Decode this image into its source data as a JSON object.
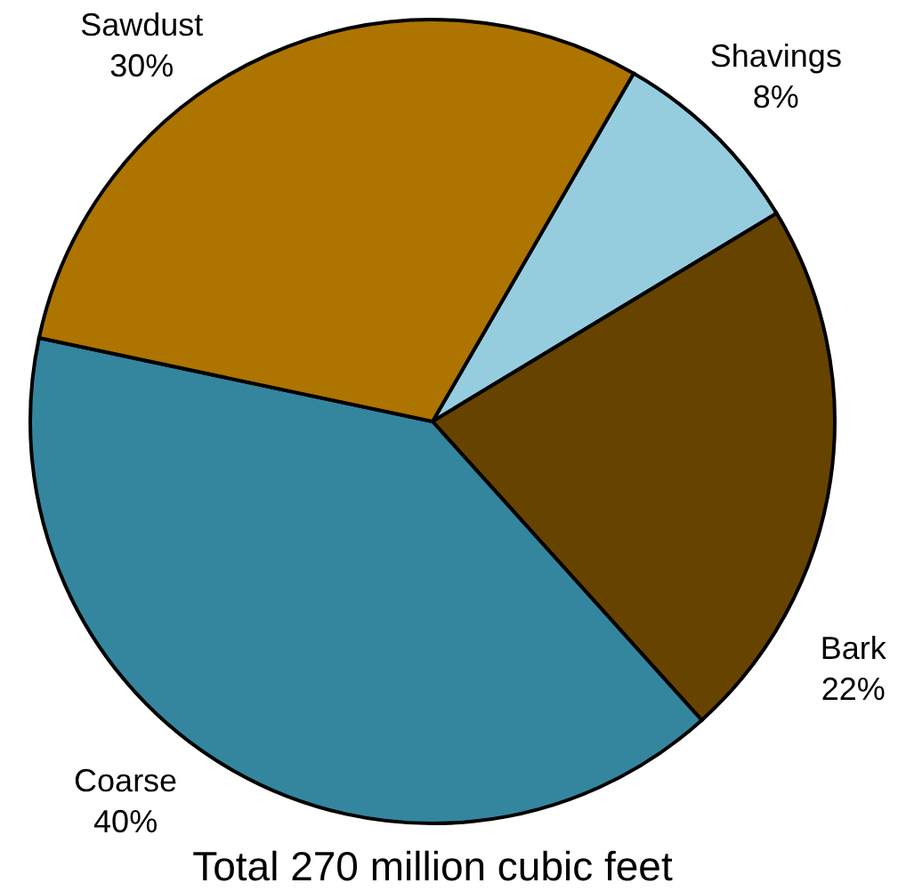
{
  "chart_data": {
    "type": "pie",
    "categories": [
      "Shavings",
      "Bark",
      "Coarse",
      "Sawdust"
    ],
    "values": [
      8,
      22,
      40,
      30
    ],
    "colors": [
      "#95cddf",
      "#674300",
      "#33869e",
      "#ad7400"
    ],
    "value_labels": [
      "8%",
      "22%",
      "40%",
      "30%"
    ],
    "annotations": [
      "Total 270 million cubic feet"
    ]
  }
}
